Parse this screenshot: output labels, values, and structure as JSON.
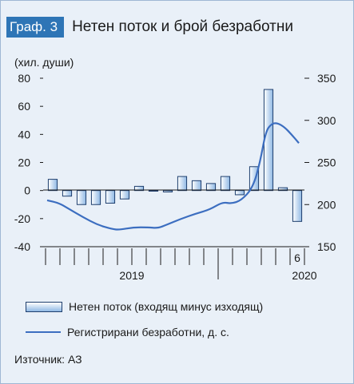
{
  "header": {
    "badge": "Граф. 3",
    "title": "Нетен поток и брой безработни"
  },
  "chart_data": {
    "type": "bar+line",
    "unit_label": "(хил. души)",
    "left_axis": {
      "ylim": [
        -40,
        80
      ],
      "ticks": [
        80,
        60,
        40,
        20,
        0,
        -20,
        -40
      ]
    },
    "right_axis": {
      "ylim": [
        150,
        350
      ],
      "ticks": [
        350,
        300,
        250,
        200,
        150
      ]
    },
    "x_labels": [
      {
        "text": "2019",
        "month_index": 6
      },
      {
        "text": "2020",
        "month_index": 18
      },
      {
        "text": "6",
        "month_index": 17.5
      }
    ],
    "series": [
      {
        "name": "Нетен поток (входящ минус изходящ)",
        "kind": "bar",
        "axis": "left",
        "color": "#2e75b6",
        "values": [
          8,
          -4,
          -10,
          -10,
          -9,
          -6,
          3,
          0,
          -1,
          10,
          7,
          5,
          10,
          -3,
          17,
          72,
          2,
          -22
        ]
      },
      {
        "name": "Регистрирани безработни, д. с.",
        "kind": "line",
        "axis": "right",
        "color": "#3c6ec0",
        "points": [
          [
            0,
            205
          ],
          [
            0.8,
            202
          ],
          [
            1.5,
            195
          ],
          [
            2.5,
            185
          ],
          [
            3.5,
            176
          ],
          [
            4.5,
            171
          ],
          [
            5,
            170
          ],
          [
            6,
            173
          ],
          [
            7,
            173
          ],
          [
            7.7,
            172
          ],
          [
            8.3,
            176
          ],
          [
            9.3,
            183
          ],
          [
            10.3,
            189
          ],
          [
            11.3,
            194
          ],
          [
            12.2,
            203
          ],
          [
            12.8,
            201
          ],
          [
            13.5,
            205
          ],
          [
            14.3,
            220
          ],
          [
            14.8,
            250
          ],
          [
            15.2,
            287
          ],
          [
            15.6,
            296
          ],
          [
            16,
            297
          ],
          [
            16.5,
            292
          ],
          [
            17,
            283
          ],
          [
            17.5,
            273
          ]
        ]
      }
    ],
    "grid": false
  },
  "source": {
    "text": "Източник: АЗ"
  }
}
